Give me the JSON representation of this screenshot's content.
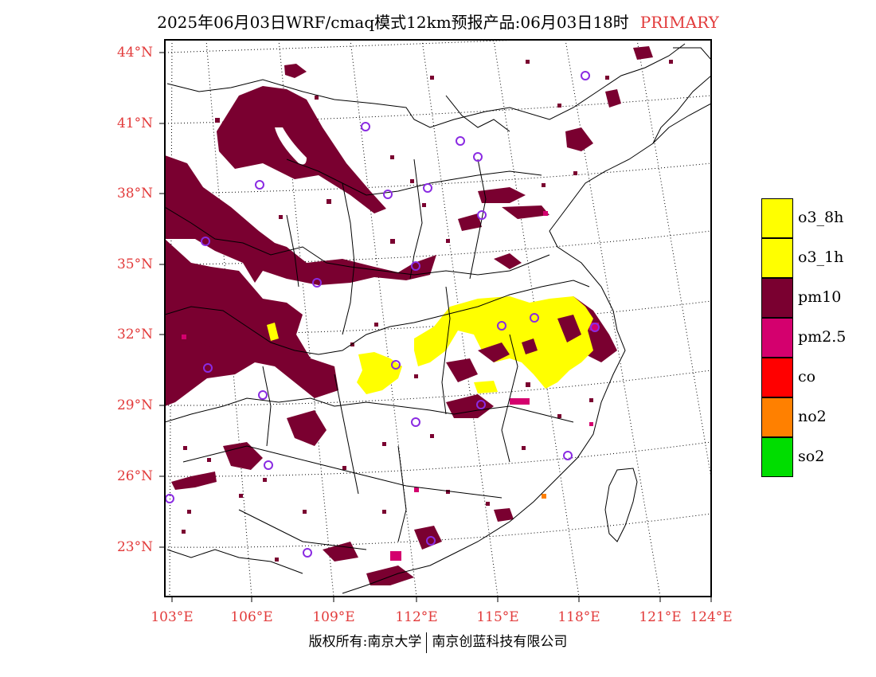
{
  "title": {
    "main": "2025年06月03日WRF/cmaq模式12km预报产品:06月03日18时",
    "tag": "PRIMARY"
  },
  "axes": {
    "lat_labels": [
      "44°N",
      "41°N",
      "38°N",
      "35°N",
      "32°N",
      "29°N",
      "26°N",
      "23°N"
    ],
    "lon_labels": [
      "103°E",
      "106°E",
      "109°E",
      "112°E",
      "115°E",
      "118°E",
      "121°E",
      "124°E"
    ]
  },
  "legend": [
    {
      "label": "o3_8h",
      "color": "#ffff00"
    },
    {
      "label": "o3_1h",
      "color": "#ffff00"
    },
    {
      "label": "pm10",
      "color": "#7a0030"
    },
    {
      "label": "pm2.5",
      "color": "#d4006e"
    },
    {
      "label": "co",
      "color": "#ff0000"
    },
    {
      "label": "no2",
      "color": "#ff8000"
    },
    {
      "label": "so2",
      "color": "#00dd00"
    }
  ],
  "footer": {
    "left": "版权所有:南京大学",
    "right": "南京创蓝科技有限公司"
  },
  "colors": {
    "pm10": "#7a0030",
    "pm25": "#d4006e",
    "o3": "#ffff00",
    "no2": "#ff8000",
    "city_marker": "#8a2be2",
    "axis_label": "#e23b3b"
  }
}
